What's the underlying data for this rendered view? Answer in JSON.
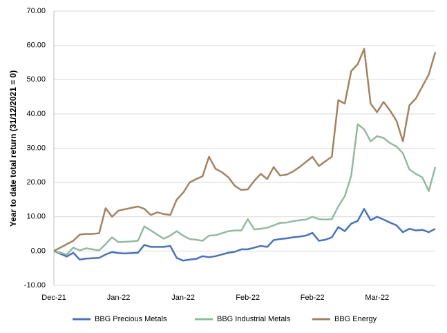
{
  "chart_data": {
    "type": "line",
    "y_label": "Year to date total return (31/12/2021 = 0)",
    "categories": [
      "Dec-21",
      null,
      null,
      null,
      null,
      null,
      null,
      null,
      null,
      null,
      "Jan-22",
      null,
      null,
      null,
      null,
      null,
      null,
      null,
      null,
      null,
      "Jan-22",
      null,
      null,
      null,
      null,
      null,
      null,
      null,
      null,
      null,
      "Feb-22",
      null,
      null,
      null,
      null,
      null,
      null,
      null,
      null,
      null,
      "Feb-22",
      null,
      null,
      null,
      null,
      null,
      null,
      null,
      null,
      null,
      "Mar-22",
      null,
      null,
      null,
      null,
      null,
      null,
      null,
      null,
      null
    ],
    "series": [
      {
        "name": "BBG Precious Metals",
        "color": "#4472c4",
        "values": [
          0,
          -0.8,
          -1.6,
          -0.5,
          -2.5,
          -2.2,
          -2.1,
          -2,
          -1,
          -0.3,
          -0.6,
          -0.7,
          -0.6,
          -0.5,
          1.8,
          1.2,
          1.2,
          1.2,
          1.5,
          -2,
          -2.8,
          -2.5,
          -2.3,
          -1.5,
          -1.8,
          -1.5,
          -1,
          -0.5,
          -0.2,
          0.5,
          0.5,
          1,
          1.5,
          1.2,
          3.2,
          3.5,
          3.7,
          4,
          4.2,
          4.5,
          5.3,
          3,
          3.3,
          4,
          7,
          5.8,
          8,
          8.8,
          12.3,
          9,
          10,
          9.2,
          8.3,
          7.5,
          5.5,
          6.5,
          6,
          6.2,
          5.5,
          6.5
        ]
      },
      {
        "name": "BBG Industrial Metals",
        "color": "#8fbc9f",
        "values": [
          0,
          -0.5,
          -1,
          1,
          0.2,
          0.8,
          0.5,
          0.2,
          2,
          4,
          2.6,
          2.7,
          2.8,
          3,
          7.2,
          6,
          4.8,
          3.6,
          4.5,
          5.8,
          4.5,
          3.5,
          3.3,
          3,
          4.5,
          4.6,
          5.2,
          5.8,
          6,
          6,
          9.3,
          6.3,
          6.5,
          6.8,
          7.5,
          8.2,
          8.3,
          8.7,
          9,
          9.2,
          10,
          9.3,
          9.2,
          9.3,
          13,
          16,
          22,
          37,
          35.5,
          32,
          33.5,
          33,
          31.5,
          30.5,
          28.5,
          23.8,
          22.5,
          21.5,
          17.5,
          24.5
        ]
      },
      {
        "name": "BBG Energy",
        "color": "#a5825e",
        "values": [
          0,
          1,
          2,
          3,
          4.8,
          5,
          5,
          5.2,
          12.5,
          10,
          11.8,
          12.2,
          12.6,
          13,
          12.3,
          10.5,
          11.3,
          10.8,
          10.5,
          15,
          17,
          20,
          21,
          21.8,
          27.5,
          24,
          23,
          21.5,
          19,
          17.8,
          18,
          20.5,
          22.5,
          21,
          24.5,
          22,
          22.3,
          23.2,
          24.5,
          26,
          27.5,
          24.8,
          26.2,
          27.5,
          44,
          43,
          52.5,
          54.5,
          59,
          43,
          40.5,
          43.5,
          41,
          38,
          32,
          42.5,
          44.5,
          48,
          51.5,
          58
        ]
      }
    ],
    "ylim": [
      -10,
      70
    ],
    "yticks": [
      {
        "value": -10,
        "label": "-10.00"
      },
      {
        "value": 0,
        "label": "0.00"
      },
      {
        "value": 10,
        "label": "10.00"
      },
      {
        "value": 20,
        "label": "20.00"
      },
      {
        "value": 30,
        "label": "30.00"
      },
      {
        "value": 40,
        "label": "40.00"
      },
      {
        "value": 50,
        "label": "50.00"
      },
      {
        "value": 60,
        "label": "60.00"
      },
      {
        "value": 70,
        "label": "70.00"
      }
    ],
    "grid": true,
    "legend": "bottom"
  }
}
